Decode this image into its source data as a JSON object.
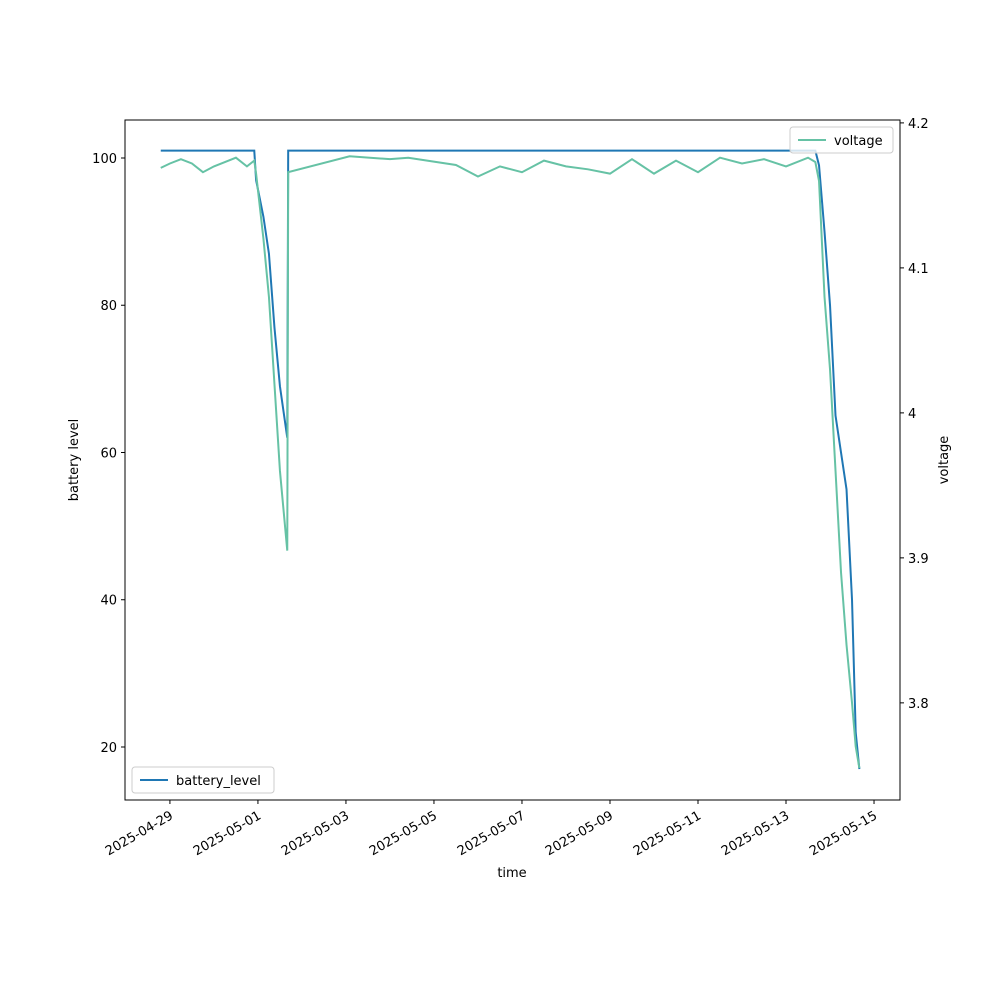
{
  "chart_data": {
    "type": "line",
    "xlabel": "time",
    "ylabel": "battery level",
    "y2label": "voltage",
    "x": [
      "2025-04-28T19:00",
      "2025-04-29T00:00",
      "2025-04-29T06:00",
      "2025-04-29T12:00",
      "2025-04-29T18:00",
      "2025-04-30T00:00",
      "2025-04-30T06:00",
      "2025-04-30T12:00",
      "2025-04-30T18:00",
      "2025-04-30T22:00",
      "2025-04-30T23:00",
      "2025-05-01T03:00",
      "2025-05-01T06:00",
      "2025-05-01T09:00",
      "2025-05-01T12:00",
      "2025-05-01T16:00",
      "2025-05-01T16:30",
      "2025-05-03T02:00",
      "2025-05-04T00:00",
      "2025-05-04T10:00",
      "2025-05-05T12:00",
      "2025-05-06T00:00",
      "2025-05-06T12:00",
      "2025-05-07T00:00",
      "2025-05-07T12:00",
      "2025-05-08T00:00",
      "2025-05-08T12:00",
      "2025-05-09T00:00",
      "2025-05-09T12:00",
      "2025-05-10T00:00",
      "2025-05-10T12:00",
      "2025-05-11T00:00",
      "2025-05-11T12:00",
      "2025-05-12T00:00",
      "2025-05-12T12:00",
      "2025-05-13T00:00",
      "2025-05-13T12:00",
      "2025-05-13T16:00",
      "2025-05-13T18:00",
      "2025-05-13T21:00",
      "2025-05-14T00:00",
      "2025-05-14T03:00",
      "2025-05-14T06:00",
      "2025-05-14T09:00",
      "2025-05-14T12:00",
      "2025-05-14T14:00",
      "2025-05-14T16:00"
    ],
    "series": [
      {
        "name": "battery_level",
        "color": "#1f77b4",
        "axis": "y",
        "values": [
          101,
          101,
          101,
          101,
          101,
          101,
          101,
          101,
          101,
          101,
          97,
          92,
          87,
          77,
          69,
          62,
          101,
          101,
          101,
          101,
          101,
          101,
          101,
          101,
          101,
          101,
          101,
          101,
          101,
          101,
          101,
          101,
          101,
          101,
          101,
          101,
          101,
          101,
          99,
          90,
          80,
          65,
          60,
          55,
          40,
          22,
          17
        ]
      },
      {
        "name": "voltage",
        "color": "#66c2a5",
        "axis": "y2",
        "values": [
          4.169,
          4.172,
          4.175,
          4.172,
          4.166,
          4.17,
          4.173,
          4.176,
          4.17,
          4.174,
          4.165,
          4.12,
          4.08,
          4.02,
          3.96,
          3.905,
          4.166,
          4.177,
          4.175,
          4.176,
          4.171,
          4.163,
          4.17,
          4.166,
          4.174,
          4.17,
          4.168,
          4.165,
          4.175,
          4.165,
          4.174,
          4.166,
          4.176,
          4.172,
          4.175,
          4.17,
          4.176,
          4.173,
          4.16,
          4.08,
          4.03,
          3.96,
          3.89,
          3.84,
          3.8,
          3.77,
          3.755
        ]
      }
    ],
    "xlim": [
      "2025-04-27T23:30",
      "2025-05-15T14:10"
    ],
    "xticks": [
      "2025-04-29",
      "2025-05-01",
      "2025-05-03",
      "2025-05-05",
      "2025-05-07",
      "2025-05-09",
      "2025-05-11",
      "2025-05-13",
      "2025-05-15"
    ],
    "ylim": [
      12.8,
      105.16
    ],
    "yticks": [
      20,
      40,
      60,
      80,
      100
    ],
    "y2lim": [
      3.733,
      4.202
    ],
    "y2ticks": [
      3.8,
      3.9,
      4.0,
      4.1,
      4.2
    ],
    "legend_loc": [
      "lower left",
      "upper right"
    ]
  }
}
